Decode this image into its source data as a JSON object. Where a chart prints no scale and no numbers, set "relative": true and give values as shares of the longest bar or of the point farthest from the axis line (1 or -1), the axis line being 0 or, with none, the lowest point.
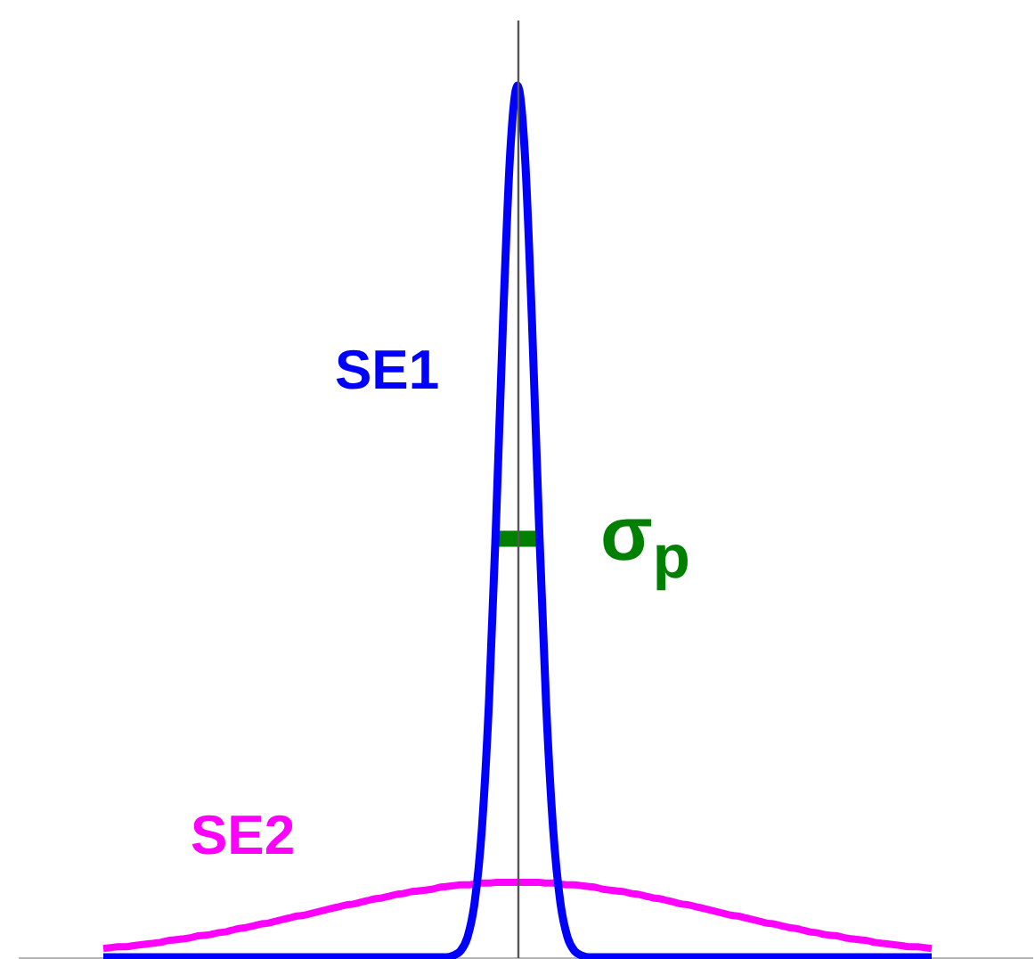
{
  "chart_data": {
    "type": "line",
    "relative": true,
    "legend": false,
    "categories": [
      null,
      null,
      null,
      null,
      null,
      null,
      null,
      null,
      null,
      null,
      null,
      null,
      null,
      null,
      null,
      null,
      null,
      null,
      null,
      null,
      null,
      null,
      null,
      null,
      null,
      null,
      null,
      null,
      null,
      null,
      null,
      null,
      null,
      null,
      null,
      null,
      null,
      null,
      null,
      null,
      null,
      null,
      null,
      null,
      null,
      null,
      null,
      null,
      null,
      null,
      null,
      null,
      null,
      null,
      null,
      null,
      null,
      null,
      null,
      null,
      null,
      null,
      null,
      null,
      null,
      null,
      null,
      null,
      null,
      null,
      null,
      null,
      null,
      null,
      null,
      null,
      null,
      null,
      null,
      null,
      null,
      null,
      null,
      null,
      null,
      null,
      null,
      null,
      null,
      null,
      null,
      null,
      null,
      null,
      null,
      null,
      null,
      null,
      null,
      null,
      null,
      null,
      null,
      null,
      null,
      null,
      null,
      null,
      null,
      null,
      null,
      null,
      null,
      null,
      null,
      null,
      null
    ],
    "series": [
      {
        "name": "SE1",
        "color": "#0000ff",
        "values": [
          0,
          0,
          0,
          0,
          0,
          0,
          0,
          0,
          0,
          0,
          0,
          0,
          0,
          0,
          0,
          0,
          0,
          0,
          0,
          0,
          0,
          0,
          0,
          0,
          0,
          0,
          0,
          0,
          0,
          0,
          0,
          0,
          0,
          0,
          0,
          0,
          0,
          0,
          0,
          0,
          0,
          0,
          0,
          0,
          0,
          0,
          0,
          0,
          0,
          0.002,
          0.007,
          0.023,
          0.063,
          0.146,
          0.292,
          0.5,
          0.735,
          0.926,
          1,
          0.926,
          0.735,
          0.5,
          0.292,
          0.146,
          0.063,
          0.023,
          0.007,
          0.002,
          0,
          0,
          0,
          0,
          0,
          0,
          0,
          0,
          0,
          0,
          0,
          0,
          0,
          0,
          0,
          0,
          0,
          0,
          0,
          0,
          0,
          0,
          0,
          0,
          0,
          0,
          0,
          0,
          0,
          0,
          0,
          0,
          0,
          0,
          0,
          0,
          0,
          0,
          0,
          0,
          0,
          0,
          0,
          0,
          0,
          0,
          0,
          0,
          0
        ]
      },
      {
        "name": "SE2",
        "color": "#ff00ff",
        "values": [
          0.01,
          0.011,
          0.012,
          0.012,
          0.013,
          0.014,
          0.015,
          0.016,
          0.017,
          0.019,
          0.02,
          0.021,
          0.022,
          0.024,
          0.025,
          0.026,
          0.028,
          0.029,
          0.031,
          0.033,
          0.034,
          0.036,
          0.038,
          0.039,
          0.041,
          0.043,
          0.045,
          0.047,
          0.048,
          0.05,
          0.052,
          0.054,
          0.056,
          0.058,
          0.06,
          0.061,
          0.063,
          0.065,
          0.067,
          0.068,
          0.07,
          0.072,
          0.073,
          0.075,
          0.076,
          0.077,
          0.078,
          0.08,
          0.081,
          0.082,
          0.083,
          0.083,
          0.084,
          0.085,
          0.085,
          0.086,
          0.086,
          0.086,
          0.086,
          0.086,
          0.086,
          0.086,
          0.085,
          0.085,
          0.084,
          0.083,
          0.083,
          0.082,
          0.081,
          0.08,
          0.078,
          0.077,
          0.076,
          0.075,
          0.073,
          0.072,
          0.07,
          0.068,
          0.067,
          0.065,
          0.063,
          0.061,
          0.06,
          0.058,
          0.056,
          0.054,
          0.052,
          0.05,
          0.048,
          0.047,
          0.045,
          0.043,
          0.041,
          0.039,
          0.038,
          0.036,
          0.034,
          0.033,
          0.031,
          0.029,
          0.028,
          0.026,
          0.025,
          0.024,
          0.022,
          0.021,
          0.02,
          0.019,
          0.017,
          0.016,
          0.015,
          0.014,
          0.013,
          0.012,
          0.012,
          0.011,
          0.01
        ]
      },
      {
        "name": "σ$_{p}$",
        "color": "#008000",
        "values": [
          null,
          null,
          null,
          null,
          null,
          null,
          null,
          null,
          null,
          null,
          null,
          null,
          null,
          null,
          null,
          null,
          null,
          null,
          null,
          null,
          null,
          null,
          null,
          null,
          null,
          null,
          null,
          null,
          null,
          null,
          null,
          null,
          null,
          null,
          null,
          null,
          null,
          null,
          null,
          null,
          null,
          null,
          null,
          null,
          null,
          null,
          null,
          null,
          null,
          null,
          null,
          null,
          null,
          null,
          null,
          0.48,
          0.48,
          0.48,
          0.48,
          0.48,
          0.48,
          0.48,
          null,
          null,
          null,
          null,
          null,
          null,
          null,
          null,
          null,
          null,
          null,
          null,
          null,
          null,
          null,
          null,
          null,
          null,
          null,
          null,
          null,
          null,
          null,
          null,
          null,
          null,
          null,
          null,
          null,
          null,
          null,
          null,
          null,
          null,
          null,
          null,
          null,
          null,
          null,
          null,
          null,
          null,
          null,
          null,
          null,
          null,
          null,
          null,
          null,
          null,
          null,
          null,
          null,
          null,
          null
        ]
      }
    ]
  }
}
